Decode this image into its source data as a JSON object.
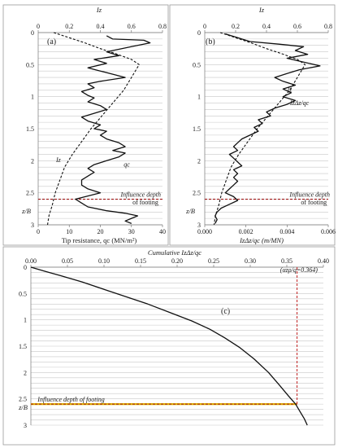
{
  "chart_data": [
    {
      "id": "a",
      "type": "line",
      "panel_label": "(a)",
      "top_axis": {
        "label": "Iz",
        "range": [
          0,
          0.8
        ],
        "ticks": [
          "0",
          "0.2",
          "0.4",
          "0.6",
          "0.8"
        ]
      },
      "bottom_axis": {
        "label": "Tip resistance, qc (MN/m²)",
        "range": [
          0,
          40
        ],
        "ticks": [
          "0",
          "10",
          "20",
          "30",
          "40"
        ]
      },
      "y_axis": {
        "label": "z/B",
        "range": [
          0,
          3
        ],
        "ticks": [
          "0",
          "0.5",
          "1",
          "1.5",
          "2",
          "2.5",
          "3"
        ],
        "inverted": true
      },
      "grid": "horizontal every 0.1",
      "series": [
        {
          "name": "Iz",
          "axis": "top",
          "style": "dashed",
          "points": [
            [
              0.1,
              0
            ],
            [
              0.2,
              0.08
            ],
            [
              0.3,
              0.16
            ],
            [
              0.4,
              0.25
            ],
            [
              0.5,
              0.33
            ],
            [
              0.6,
              0.42
            ],
            [
              0.65,
              0.5
            ],
            [
              0.6,
              0.7
            ],
            [
              0.55,
              0.9
            ],
            [
              0.48,
              1.1
            ],
            [
              0.41,
              1.3
            ],
            [
              0.34,
              1.5
            ],
            [
              0.28,
              1.7
            ],
            [
              0.22,
              1.9
            ],
            [
              0.17,
              2.1
            ],
            [
              0.14,
              2.3
            ],
            [
              0.11,
              2.5
            ],
            [
              0.09,
              2.7
            ],
            [
              0.07,
              2.85
            ],
            [
              0.06,
              3.0
            ]
          ]
        },
        {
          "name": "qc",
          "axis": "bottom",
          "style": "solid",
          "points": [
            [
              22,
              0.05
            ],
            [
              24,
              0.1
            ],
            [
              34,
              0.12
            ],
            [
              36,
              0.16
            ],
            [
              30,
              0.22
            ],
            [
              22,
              0.3
            ],
            [
              26,
              0.36
            ],
            [
              18,
              0.42
            ],
            [
              22,
              0.48
            ],
            [
              16,
              0.55
            ],
            [
              20,
              0.6
            ],
            [
              24,
              0.65
            ],
            [
              28,
              0.7
            ],
            [
              20,
              0.76
            ],
            [
              16,
              0.8
            ],
            [
              18,
              0.86
            ],
            [
              14,
              0.92
            ],
            [
              16,
              0.98
            ],
            [
              18,
              1.02
            ],
            [
              16,
              1.08
            ],
            [
              20,
              1.14
            ],
            [
              22,
              1.2
            ],
            [
              18,
              1.26
            ],
            [
              14,
              1.32
            ],
            [
              16,
              1.38
            ],
            [
              20,
              1.44
            ],
            [
              18,
              1.5
            ],
            [
              22,
              1.54
            ],
            [
              20,
              1.6
            ],
            [
              22,
              1.66
            ],
            [
              26,
              1.72
            ],
            [
              28,
              1.78
            ],
            [
              24,
              1.84
            ],
            [
              28,
              1.88
            ],
            [
              26,
              1.94
            ],
            [
              22,
              2.0
            ],
            [
              18,
              2.06
            ],
            [
              16,
              2.12
            ],
            [
              18,
              2.18
            ],
            [
              16,
              2.24
            ],
            [
              14,
              2.3
            ],
            [
              14,
              2.38
            ],
            [
              16,
              2.44
            ],
            [
              20,
              2.5
            ],
            [
              16,
              2.55
            ],
            [
              12,
              2.6
            ],
            [
              14,
              2.66
            ],
            [
              16,
              2.72
            ],
            [
              22,
              2.78
            ],
            [
              28,
              2.82
            ],
            [
              32,
              2.86
            ],
            [
              30,
              2.9
            ],
            [
              28,
              2.94
            ],
            [
              30,
              2.98
            ]
          ]
        }
      ],
      "annotations": [
        {
          "text": "Iz",
          "x": 0.13,
          "y": 2.02,
          "axis": "top"
        },
        {
          "text": "qc",
          "x": 28.5,
          "y": 2.09,
          "axis": "bottom"
        },
        {
          "text": "Influence depth",
          "x": 33,
          "y": 2.56,
          "axis": "bottom"
        },
        {
          "text": "of footing",
          "x": 34.5,
          "y": 2.68,
          "axis": "bottom"
        }
      ],
      "influence_depth": 2.6
    },
    {
      "id": "b",
      "type": "line",
      "panel_label": "(b)",
      "top_axis": {
        "label": "Iz",
        "range": [
          0,
          0.8
        ],
        "ticks": [
          "0",
          "0.2",
          "0.4",
          "0.6",
          "0.8"
        ]
      },
      "bottom_axis": {
        "label": "IzΔz/qc (m/MN)",
        "range": [
          0,
          0.006
        ],
        "ticks": [
          "0.000",
          "0.002",
          "0.004",
          "0.006"
        ]
      },
      "y_axis": {
        "label": "z/B",
        "range": [
          0,
          3
        ],
        "ticks": [
          "0",
          "0.5",
          "1",
          "1.5",
          "2",
          "2.5",
          "3"
        ],
        "inverted": true
      },
      "grid": "horizontal every 0.1",
      "series": [
        {
          "name": "Iz",
          "axis": "top",
          "style": "dashed",
          "points": [
            [
              0.1,
              0
            ],
            [
              0.2,
              0.08
            ],
            [
              0.3,
              0.16
            ],
            [
              0.4,
              0.25
            ],
            [
              0.5,
              0.33
            ],
            [
              0.6,
              0.42
            ],
            [
              0.65,
              0.5
            ],
            [
              0.6,
              0.7
            ],
            [
              0.55,
              0.9
            ],
            [
              0.48,
              1.1
            ],
            [
              0.41,
              1.3
            ],
            [
              0.34,
              1.5
            ],
            [
              0.28,
              1.7
            ],
            [
              0.22,
              1.9
            ],
            [
              0.17,
              2.1
            ],
            [
              0.14,
              2.3
            ],
            [
              0.11,
              2.5
            ],
            [
              0.09,
              2.7
            ],
            [
              0.07,
              2.85
            ],
            [
              0.06,
              3.0
            ]
          ]
        },
        {
          "name": "IzΔz/qc",
          "axis": "bottom",
          "style": "solid",
          "points": [
            [
              0.001,
              0.02
            ],
            [
              0.0016,
              0.08
            ],
            [
              0.0022,
              0.14
            ],
            [
              0.0036,
              0.18
            ],
            [
              0.0048,
              0.22
            ],
            [
              0.0044,
              0.28
            ],
            [
              0.005,
              0.34
            ],
            [
              0.004,
              0.4
            ],
            [
              0.0048,
              0.46
            ],
            [
              0.0056,
              0.52
            ],
            [
              0.0046,
              0.58
            ],
            [
              0.004,
              0.64
            ],
            [
              0.0034,
              0.7
            ],
            [
              0.0038,
              0.76
            ],
            [
              0.0044,
              0.82
            ],
            [
              0.0038,
              0.88
            ],
            [
              0.0042,
              0.94
            ],
            [
              0.0038,
              1.0
            ],
            [
              0.0044,
              1.06
            ],
            [
              0.004,
              1.12
            ],
            [
              0.0034,
              1.18
            ],
            [
              0.003,
              1.24
            ],
            [
              0.0032,
              1.3
            ],
            [
              0.0026,
              1.36
            ],
            [
              0.0028,
              1.42
            ],
            [
              0.0024,
              1.48
            ],
            [
              0.0026,
              1.54
            ],
            [
              0.0022,
              1.6
            ],
            [
              0.0018,
              1.66
            ],
            [
              0.0016,
              1.72
            ],
            [
              0.0014,
              1.78
            ],
            [
              0.0016,
              1.84
            ],
            [
              0.0012,
              1.9
            ],
            [
              0.0014,
              1.96
            ],
            [
              0.0016,
              2.02
            ],
            [
              0.0018,
              2.08
            ],
            [
              0.0014,
              2.14
            ],
            [
              0.0016,
              2.2
            ],
            [
              0.0014,
              2.26
            ],
            [
              0.0016,
              2.32
            ],
            [
              0.0014,
              2.38
            ],
            [
              0.0012,
              2.44
            ],
            [
              0.001,
              2.5
            ],
            [
              0.0014,
              2.56
            ],
            [
              0.0016,
              2.62
            ],
            [
              0.0012,
              2.68
            ],
            [
              0.0008,
              2.74
            ],
            [
              0.0006,
              2.8
            ],
            [
              0.0005,
              2.86
            ],
            [
              0.0006,
              2.92
            ],
            [
              0.0005,
              2.98
            ]
          ]
        }
      ],
      "annotations": [
        {
          "text": "Iz",
          "x": 0.55,
          "y": 0.92,
          "axis": "top"
        },
        {
          "text": "IzΔz/qc",
          "x": 0.0046,
          "y": 1.13,
          "axis": "bottom"
        },
        {
          "text": "Influence depth",
          "x": 0.0051,
          "y": 2.56,
          "axis": "bottom"
        },
        {
          "text": "of footing",
          "x": 0.0053,
          "y": 2.68,
          "axis": "bottom"
        }
      ],
      "influence_depth": 2.6
    },
    {
      "id": "c",
      "type": "line",
      "panel_label": "(c)",
      "top_axis": {
        "label": "Cumulative IzΔz/qc",
        "range": [
          0,
          0.4
        ],
        "ticks": [
          "0.00",
          "0.05",
          "0.10",
          "0.15",
          "0.20",
          "0.25",
          "0.30",
          "0.35",
          "0.40"
        ]
      },
      "y_axis": {
        "label": "z/B",
        "range": [
          0,
          3
        ],
        "ticks": [
          "0",
          "0.5",
          "1",
          "1.5",
          "2",
          "2.5",
          "3"
        ],
        "inverted": true
      },
      "grid": "horizontal every 0.1",
      "series": [
        {
          "name": "Cumulative IzΔz/qc",
          "axis": "top",
          "style": "solid",
          "points": [
            [
              0.0,
              0.0
            ],
            [
              0.01,
              0.04
            ],
            [
              0.02,
              0.08
            ],
            [
              0.04,
              0.16
            ],
            [
              0.07,
              0.28
            ],
            [
              0.1,
              0.42
            ],
            [
              0.13,
              0.56
            ],
            [
              0.16,
              0.7
            ],
            [
              0.19,
              0.86
            ],
            [
              0.22,
              1.02
            ],
            [
              0.245,
              1.18
            ],
            [
              0.265,
              1.34
            ],
            [
              0.285,
              1.52
            ],
            [
              0.305,
              1.74
            ],
            [
              0.325,
              2.0
            ],
            [
              0.34,
              2.24
            ],
            [
              0.352,
              2.44
            ],
            [
              0.362,
              2.6
            ],
            [
              0.368,
              2.74
            ],
            [
              0.374,
              2.88
            ],
            [
              0.378,
              3.0
            ]
          ]
        }
      ],
      "annotations": [
        {
          "text": "(αzρ/q=0.364)",
          "x": 0.3665,
          "y": 0.09,
          "axis": "top"
        },
        {
          "text": "Influence depth of footing",
          "x": 0.055,
          "y": 2.55,
          "axis": "top"
        }
      ],
      "marker_x": 0.364,
      "influence_depth": 2.6
    }
  ]
}
